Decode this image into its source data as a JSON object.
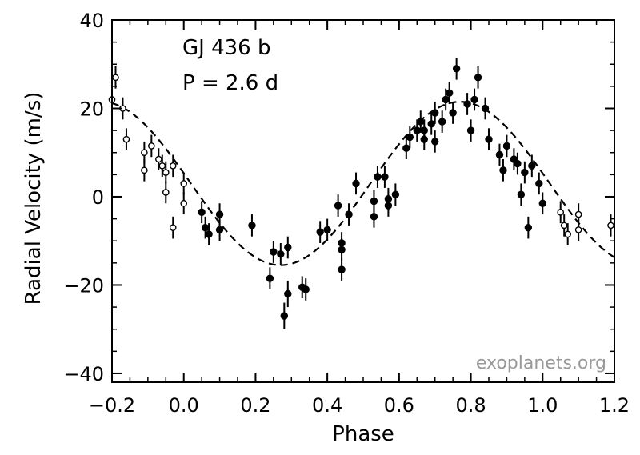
{
  "chart_data": {
    "type": "scatter",
    "xlabel": "Phase",
    "ylabel": "Radial Velocity  (m/s)",
    "xlim": [
      -0.2,
      1.2
    ],
    "ylim": [
      -42,
      40
    ],
    "xticks": [
      -0.2,
      0.0,
      0.2,
      0.4,
      0.6,
      0.8,
      1.0,
      1.2
    ],
    "xtick_labels": [
      "−0.2",
      "0.0",
      "0.2",
      "0.4",
      "0.6",
      "0.8",
      "1.0",
      "1.2"
    ],
    "yticks": [
      -40,
      -20,
      0,
      20,
      40
    ],
    "ytick_labels": [
      "−40",
      "−20",
      "0",
      "20",
      "40"
    ],
    "annotations": [
      "GJ 436 b",
      "P = 2.6 d"
    ],
    "credit": "exoplanets.org",
    "grid": false,
    "colors": {
      "filled": "#000000",
      "open_fill": "#ffffff",
      "fit": "#000000",
      "credit": "#999999"
    },
    "fit": {
      "style": "dashed",
      "amplitude": 18.5,
      "offset": 3,
      "peak_phase": 0.77
    },
    "series": [
      {
        "marker": "filled-circle",
        "points": [
          {
            "x": 0.05,
            "y": -3.5,
            "err": 2.5
          },
          {
            "x": 0.06,
            "y": -7,
            "err": 2.5
          },
          {
            "x": 0.07,
            "y": -8.5,
            "err": 2.5
          },
          {
            "x": 0.1,
            "y": -4,
            "err": 2.5
          },
          {
            "x": 0.1,
            "y": -7.5,
            "err": 2.5
          },
          {
            "x": 0.19,
            "y": -6.5,
            "err": 2.5
          },
          {
            "x": 0.24,
            "y": -18.5,
            "err": 2.5
          },
          {
            "x": 0.25,
            "y": -12.5,
            "err": 2.5
          },
          {
            "x": 0.27,
            "y": -13,
            "err": 2.5
          },
          {
            "x": 0.28,
            "y": -27,
            "err": 3
          },
          {
            "x": 0.29,
            "y": -11.5,
            "err": 2.5
          },
          {
            "x": 0.29,
            "y": -22,
            "err": 3
          },
          {
            "x": 0.33,
            "y": -20.5,
            "err": 2.5
          },
          {
            "x": 0.34,
            "y": -21,
            "err": 2.5
          },
          {
            "x": 0.38,
            "y": -8,
            "err": 2.5
          },
          {
            "x": 0.4,
            "y": -7.5,
            "err": 2.5
          },
          {
            "x": 0.43,
            "y": -2,
            "err": 2.5
          },
          {
            "x": 0.44,
            "y": -10.5,
            "err": 2.5
          },
          {
            "x": 0.44,
            "y": -12,
            "err": 2.5
          },
          {
            "x": 0.44,
            "y": -16.5,
            "err": 2.5
          },
          {
            "x": 0.46,
            "y": -4,
            "err": 2.5
          },
          {
            "x": 0.48,
            "y": 3,
            "err": 2.5
          },
          {
            "x": 0.53,
            "y": -1,
            "err": 2.5
          },
          {
            "x": 0.53,
            "y": -4.5,
            "err": 2.5
          },
          {
            "x": 0.54,
            "y": 4.5,
            "err": 2.5
          },
          {
            "x": 0.56,
            "y": 4.5,
            "err": 2.5
          },
          {
            "x": 0.57,
            "y": -2,
            "err": 2.5
          },
          {
            "x": 0.57,
            "y": -0.5,
            "err": 2.5
          },
          {
            "x": 0.59,
            "y": 0.5,
            "err": 2.5
          },
          {
            "x": 0.62,
            "y": 11,
            "err": 2.5
          },
          {
            "x": 0.63,
            "y": 13.5,
            "err": 2.5
          },
          {
            "x": 0.65,
            "y": 15,
            "err": 2.5
          },
          {
            "x": 0.66,
            "y": 17,
            "err": 2.5
          },
          {
            "x": 0.67,
            "y": 13,
            "err": 2.5
          },
          {
            "x": 0.67,
            "y": 15,
            "err": 2.5
          },
          {
            "x": 0.69,
            "y": 16.5,
            "err": 2.5
          },
          {
            "x": 0.7,
            "y": 12.5,
            "err": 2.5
          },
          {
            "x": 0.7,
            "y": 19,
            "err": 2.5
          },
          {
            "x": 0.72,
            "y": 17,
            "err": 2.5
          },
          {
            "x": 0.73,
            "y": 22,
            "err": 2.5
          },
          {
            "x": 0.74,
            "y": 23.5,
            "err": 2.5
          },
          {
            "x": 0.75,
            "y": 19,
            "err": 2.5
          },
          {
            "x": 0.76,
            "y": 29,
            "err": 2.5
          },
          {
            "x": 0.79,
            "y": 21,
            "err": 2.5
          },
          {
            "x": 0.8,
            "y": 15,
            "err": 2.5
          },
          {
            "x": 0.81,
            "y": 22,
            "err": 2.5
          },
          {
            "x": 0.82,
            "y": 27,
            "err": 2.5
          },
          {
            "x": 0.84,
            "y": 20,
            "err": 2.5
          },
          {
            "x": 0.85,
            "y": 13,
            "err": 2.5
          },
          {
            "x": 0.88,
            "y": 9.5,
            "err": 2.5
          },
          {
            "x": 0.89,
            "y": 6,
            "err": 2.5
          },
          {
            "x": 0.9,
            "y": 11.5,
            "err": 2.5
          },
          {
            "x": 0.92,
            "y": 8.5,
            "err": 2.5
          },
          {
            "x": 0.93,
            "y": 7.5,
            "err": 2.5
          },
          {
            "x": 0.94,
            "y": 0.5,
            "err": 2.5
          },
          {
            "x": 0.95,
            "y": 5.5,
            "err": 2.5
          },
          {
            "x": 0.96,
            "y": -7,
            "err": 2.5
          },
          {
            "x": 0.97,
            "y": 7,
            "err": 2.5
          },
          {
            "x": 0.99,
            "y": 3,
            "err": 2.5
          },
          {
            "x": 1.0,
            "y": -1.5,
            "err": 2.5
          }
        ]
      },
      {
        "marker": "open-circle",
        "points": [
          {
            "x": -0.2,
            "y": 22,
            "err": 2.5
          },
          {
            "x": -0.19,
            "y": 27,
            "err": 2.5
          },
          {
            "x": -0.17,
            "y": 20,
            "err": 2.5
          },
          {
            "x": -0.16,
            "y": 13,
            "err": 2.5
          },
          {
            "x": -0.11,
            "y": 10,
            "err": 2.5
          },
          {
            "x": -0.11,
            "y": 6,
            "err": 2.5
          },
          {
            "x": -0.09,
            "y": 11.5,
            "err": 2.5
          },
          {
            "x": -0.07,
            "y": 8.5,
            "err": 2.5
          },
          {
            "x": -0.06,
            "y": 7,
            "err": 2.5
          },
          {
            "x": -0.05,
            "y": 5.5,
            "err": 2.5
          },
          {
            "x": -0.05,
            "y": 1,
            "err": 2.5
          },
          {
            "x": -0.03,
            "y": 7,
            "err": 2.5
          },
          {
            "x": -0.03,
            "y": -7,
            "err": 2.5
          },
          {
            "x": 0.0,
            "y": 3,
            "err": 2.5
          },
          {
            "x": 0.0,
            "y": -1.5,
            "err": 2.5
          },
          {
            "x": 1.05,
            "y": -3.5,
            "err": 2.5
          },
          {
            "x": 1.06,
            "y": -6.5,
            "err": 2.5
          },
          {
            "x": 1.07,
            "y": -8.5,
            "err": 2.5
          },
          {
            "x": 1.1,
            "y": -4,
            "err": 2.5
          },
          {
            "x": 1.1,
            "y": -7.5,
            "err": 2.5
          },
          {
            "x": 1.19,
            "y": -6.5,
            "err": 2.5
          }
        ]
      }
    ]
  }
}
